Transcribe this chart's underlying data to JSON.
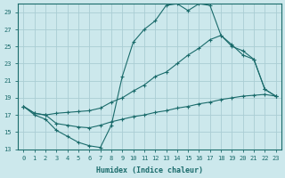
{
  "xlabel": "Humidex (Indice chaleur)",
  "bg_color": "#cce8ec",
  "grid_color": "#aacdd4",
  "line_color": "#1a6b6b",
  "xlim": [
    -0.5,
    23.5
  ],
  "ylim": [
    13,
    30
  ],
  "xticks": [
    0,
    1,
    2,
    3,
    4,
    5,
    6,
    7,
    8,
    9,
    10,
    11,
    12,
    13,
    14,
    15,
    16,
    17,
    18,
    19,
    20,
    21,
    22,
    23
  ],
  "yticks": [
    13,
    15,
    17,
    19,
    21,
    23,
    25,
    27,
    29
  ],
  "line1_x": [
    0,
    1,
    2,
    3,
    4,
    5,
    6,
    7,
    8,
    9,
    10,
    11,
    12,
    13,
    14,
    15,
    16,
    17,
    18,
    19,
    20,
    21,
    22,
    23
  ],
  "line1_y": [
    18.0,
    17.0,
    16.5,
    15.2,
    14.5,
    13.8,
    13.4,
    13.2,
    15.8,
    21.5,
    25.5,
    27.0,
    28.0,
    29.8,
    30.0,
    29.2,
    30.0,
    29.8,
    26.3,
    25.2,
    24.0,
    23.5,
    20.0,
    19.2
  ],
  "line2_x": [
    0,
    1,
    2,
    3,
    4,
    5,
    6,
    7,
    8,
    9,
    10,
    11,
    12,
    13,
    14,
    15,
    16,
    17,
    18,
    19,
    20,
    21,
    22,
    23
  ],
  "line2_y": [
    18.0,
    17.2,
    17.0,
    17.2,
    17.3,
    17.4,
    17.5,
    17.8,
    18.5,
    19.0,
    19.8,
    20.5,
    21.5,
    22.0,
    23.0,
    24.0,
    24.8,
    25.8,
    26.3,
    25.0,
    24.5,
    23.5,
    20.0,
    19.2
  ],
  "line3_x": [
    0,
    1,
    2,
    3,
    4,
    5,
    6,
    7,
    8,
    9,
    10,
    11,
    12,
    13,
    14,
    15,
    16,
    17,
    18,
    19,
    20,
    21,
    22,
    23
  ],
  "line3_y": [
    18.0,
    17.2,
    17.0,
    16.0,
    15.8,
    15.6,
    15.5,
    15.8,
    16.2,
    16.5,
    16.8,
    17.0,
    17.3,
    17.5,
    17.8,
    18.0,
    18.3,
    18.5,
    18.8,
    19.0,
    19.2,
    19.3,
    19.4,
    19.2
  ]
}
